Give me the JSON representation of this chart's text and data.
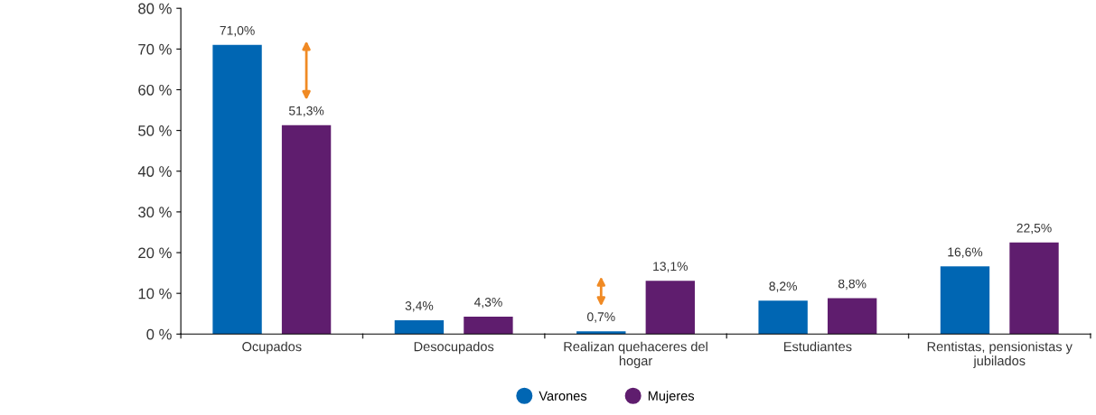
{
  "chart_data": {
    "type": "bar",
    "categories": [
      "Ocupados",
      "Desocupados",
      "Realizan quehaceres del hogar",
      "Estudiantes",
      "Rentistas, pensionistas y jubilados"
    ],
    "series": [
      {
        "name": "Varones",
        "color": "#0066b3",
        "values": [
          71.0,
          3.4,
          0.7,
          8.2,
          16.6
        ],
        "value_labels": [
          "71,0%",
          "3,4%",
          "0,7%",
          "8,2%",
          "16,6%"
        ]
      },
      {
        "name": "Mujeres",
        "color": "#5f1d6e",
        "values": [
          51.3,
          4.3,
          13.1,
          8.8,
          22.5
        ],
        "value_labels": [
          "51,3%",
          "4,3%",
          "13,1%",
          "8,8%",
          "22,5%"
        ]
      }
    ],
    "ylim": [
      0,
      80
    ],
    "yticks": [
      {
        "value": 0,
        "label": "0 %"
      },
      {
        "value": 10,
        "label": "10 %"
      },
      {
        "value": 20,
        "label": "20 %"
      },
      {
        "value": 30,
        "label": "30 %"
      },
      {
        "value": 40,
        "label": "40 %"
      },
      {
        "value": 50,
        "label": "50 %"
      },
      {
        "value": 60,
        "label": "60 %"
      },
      {
        "value": 70,
        "label": "70 %"
      },
      {
        "value": 80,
        "label": "80 %"
      }
    ],
    "grid": false,
    "legend": "bottom"
  }
}
